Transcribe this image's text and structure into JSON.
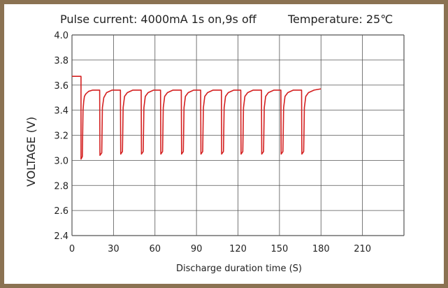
{
  "chart_data": {
    "type": "line",
    "title_left": "Pulse current: 4000mA 1s on,9s off",
    "title_right": "Temperature:  25℃",
    "xlabel": "Discharge duration time (S)",
    "ylabel": "VOLTAGE (V)",
    "xlim": [
      0,
      240
    ],
    "ylim": [
      2.4,
      4.0
    ],
    "x_ticks": [
      "0",
      "30",
      "60",
      "90",
      "120",
      "150",
      "180",
      "210"
    ],
    "y_ticks": [
      "4.0",
      "3.8",
      "3.6",
      "3.4",
      "3.2",
      "3.0",
      "2.8",
      "2.6",
      "2.4"
    ],
    "grid": true,
    "colors": {
      "line": "#d42020",
      "border": "#8b7252",
      "grid": "#555555"
    },
    "series": [
      {
        "x": [
          0,
          6.5,
          6.5,
          7.5,
          8,
          8.5,
          9,
          10,
          12,
          15,
          20,
          20.2,
          21.5,
          22,
          23,
          25,
          29,
          35,
          35.2,
          36.5,
          37,
          38,
          40,
          44,
          50,
          50.2,
          51.5,
          52,
          53,
          55,
          59,
          64,
          64.2,
          65.5,
          66,
          67,
          69,
          73,
          79,
          79.2,
          80.5,
          81,
          82,
          84,
          88,
          93,
          93.2,
          94.5,
          95,
          96,
          98,
          102,
          108,
          108.2,
          109.5,
          110,
          111,
          113,
          117,
          122,
          122.2,
          123.5,
          124,
          125,
          127,
          131,
          137,
          137.2,
          138.5,
          139,
          140,
          142,
          146,
          151,
          151.2,
          152.5,
          153,
          154,
          156,
          160,
          166,
          166.2,
          167.5,
          168,
          169,
          171,
          175,
          180
        ],
        "y": [
          3.67,
          3.67,
          3.01,
          3.03,
          3.4,
          3.47,
          3.51,
          3.53,
          3.55,
          3.56,
          3.56,
          3.04,
          3.06,
          3.42,
          3.5,
          3.54,
          3.56,
          3.56,
          3.05,
          3.07,
          3.42,
          3.51,
          3.54,
          3.56,
          3.56,
          3.05,
          3.07,
          3.42,
          3.51,
          3.54,
          3.56,
          3.56,
          3.05,
          3.07,
          3.42,
          3.51,
          3.54,
          3.56,
          3.56,
          3.05,
          3.07,
          3.42,
          3.51,
          3.54,
          3.56,
          3.56,
          3.05,
          3.07,
          3.42,
          3.51,
          3.54,
          3.56,
          3.56,
          3.05,
          3.07,
          3.42,
          3.51,
          3.54,
          3.56,
          3.56,
          3.05,
          3.07,
          3.42,
          3.51,
          3.54,
          3.56,
          3.56,
          3.05,
          3.07,
          3.42,
          3.51,
          3.54,
          3.56,
          3.56,
          3.05,
          3.07,
          3.42,
          3.51,
          3.54,
          3.56,
          3.56,
          3.05,
          3.07,
          3.42,
          3.51,
          3.54,
          3.56,
          3.57
        ]
      }
    ]
  }
}
